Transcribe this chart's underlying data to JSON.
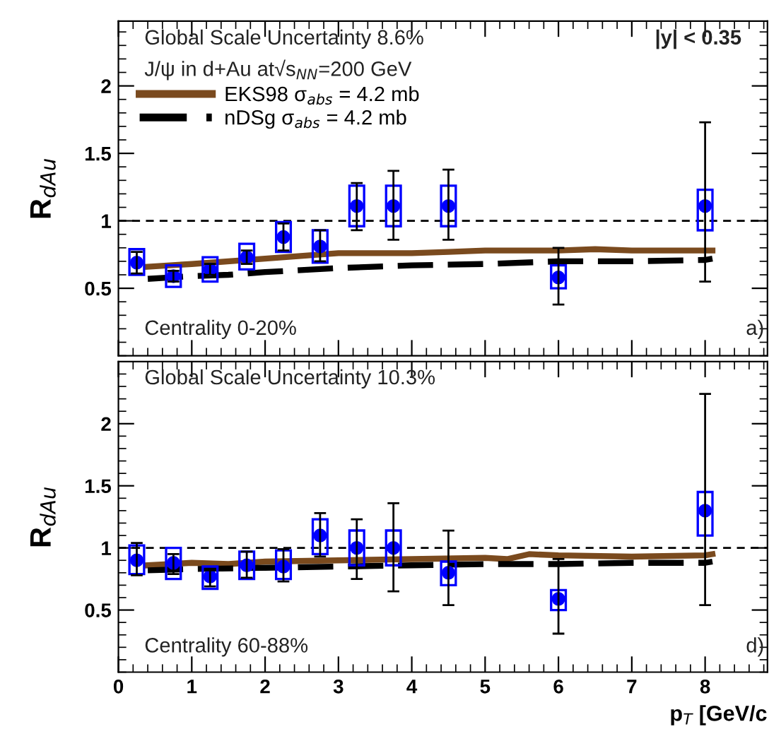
{
  "chart_data": [
    {
      "type": "scatter",
      "ylabel": "R$_{dAu}$",
      "xlim": [
        0,
        8.85
      ],
      "xticks": [
        0,
        1,
        2,
        3,
        4,
        5,
        6,
        7,
        8
      ],
      "ylim": [
        0,
        2.48
      ],
      "yticks": [
        0.5,
        1,
        1.5,
        2
      ],
      "tick_labels": "y",
      "legend": "top left",
      "grid": false,
      "annotations": [
        "Global Scale Uncertainty 8.6%",
        "J/ψ in d+Au at√s$_{NN}$=200 GeV",
        "|y| < 0.35",
        "Centrality 0-20%",
        "a)"
      ],
      "ref_lines": [
        {
          "axis": "y",
          "value": 1,
          "color": "#000000",
          "line_style": "dashed"
        }
      ],
      "series": [
        {
          "type": "bar",
          "color": "#0000ff",
          "x": [
            0.25,
            0.75,
            1.25,
            1.75,
            2.25,
            2.75,
            3.25,
            3.75,
            4.5,
            6,
            8
          ],
          "base": [
            0.6,
            0.51,
            0.55,
            0.64,
            0.77,
            0.69,
            0.96,
            0.96,
            0.96,
            0.5,
            0.93
          ],
          "values": [
            0.19,
            0.16,
            0.18,
            0.19,
            0.22,
            0.24,
            0.3,
            0.3,
            0.3,
            0.17,
            0.3
          ]
        },
        {
          "color": "#0000ff",
          "marker": "circle",
          "x": [
            0.25,
            0.75,
            1.25,
            1.75,
            2.25,
            2.75,
            3.25,
            3.75,
            4.5,
            6,
            8
          ],
          "values": [
            0.69,
            0.59,
            0.64,
            0.73,
            0.88,
            0.81,
            1.11,
            1.11,
            1.11,
            0.58,
            1.11
          ],
          "errors": [
            [
              0.61,
              0.77
            ],
            [
              0.55,
              0.63
            ],
            [
              0.6,
              0.68
            ],
            [
              0.68,
              0.78
            ],
            [
              0.78,
              0.98
            ],
            [
              0.7,
              0.93
            ],
            [
              0.93,
              1.28
            ],
            [
              0.86,
              1.37
            ],
            [
              0.86,
              1.38
            ],
            [
              0.38,
              0.8
            ],
            [
              0.55,
              1.73
            ]
          ]
        },
        {
          "type": "line",
          "name": "EKS98 σ$_{abs}$ = 4.2 mb",
          "color": "#7a4a1e",
          "line_style": "solid",
          "x": [
            0.4,
            1,
            2,
            3,
            4,
            4.5,
            5,
            6,
            6.5,
            7,
            8.1
          ],
          "values": [
            0.66,
            0.68,
            0.72,
            0.76,
            0.76,
            0.77,
            0.78,
            0.78,
            0.79,
            0.78,
            0.78
          ]
        },
        {
          "type": "line",
          "name": "nDSg σ$_{abs}$ = 4.2 mb",
          "color": "#000000",
          "line_style": "dashed",
          "x": [
            0.4,
            1,
            1.5,
            2,
            3,
            4,
            5,
            6,
            7,
            8,
            8.1
          ],
          "values": [
            0.57,
            0.59,
            0.6,
            0.62,
            0.65,
            0.67,
            0.68,
            0.7,
            0.7,
            0.71,
            0.72
          ]
        }
      ]
    },
    {
      "type": "scatter",
      "ylabel": "R$_{dAu}$",
      "xlabel": "p$_{T}$ [GeV/c",
      "xlim": [
        0,
        8.85
      ],
      "xticks": [
        0,
        1,
        2,
        3,
        4,
        5,
        6,
        7,
        8
      ],
      "ylim": [
        0,
        2.5
      ],
      "yticks": [
        0.5,
        1,
        1.5,
        2
      ],
      "grid": false,
      "annotations": [
        "Global Scale Uncertainty 10.3%",
        "Centrality 60-88%",
        "d)"
      ],
      "ref_lines": [
        {
          "axis": "y",
          "value": 1,
          "color": "#000000",
          "line_style": "dashed"
        }
      ],
      "series": [
        {
          "type": "bar",
          "color": "#0000ff",
          "x": [
            0.25,
            0.75,
            1.25,
            1.75,
            2.25,
            2.75,
            3.25,
            3.75,
            4.5,
            6,
            8
          ],
          "base": [
            0.79,
            0.75,
            0.67,
            0.75,
            0.75,
            0.95,
            0.86,
            0.86,
            0.7,
            0.5,
            1.1
          ],
          "values": [
            0.23,
            0.25,
            0.18,
            0.22,
            0.23,
            0.28,
            0.28,
            0.28,
            0.19,
            0.16,
            0.35
          ]
        },
        {
          "color": "#0000ff",
          "marker": "circle",
          "x": [
            0.25,
            0.75,
            1.25,
            1.75,
            2.25,
            2.75,
            3.25,
            3.75,
            4.5,
            6,
            8
          ],
          "values": [
            0.9,
            0.88,
            0.77,
            0.86,
            0.85,
            1.1,
            1.0,
            1.0,
            0.8,
            0.59,
            1.3
          ],
          "errors": [
            [
              0.78,
              1.04
            ],
            [
              0.79,
              0.95
            ],
            [
              0.69,
              0.82
            ],
            [
              0.76,
              0.97
            ],
            [
              0.73,
              0.99
            ],
            [
              0.93,
              1.28
            ],
            [
              0.75,
              1.23
            ],
            [
              0.65,
              1.36
            ],
            [
              0.54,
              1.14
            ],
            [
              0.31,
              0.91
            ],
            [
              0.54,
              2.24
            ]
          ]
        },
        {
          "type": "line",
          "color": "#7a4a1e",
          "line_style": "solid",
          "x": [
            0.4,
            1,
            1.5,
            2,
            3,
            4,
            5,
            5.3,
            5.6,
            6,
            7,
            8,
            8.1
          ],
          "values": [
            0.86,
            0.88,
            0.87,
            0.89,
            0.9,
            0.91,
            0.92,
            0.91,
            0.95,
            0.94,
            0.93,
            0.94,
            0.95
          ]
        },
        {
          "type": "line",
          "color": "#000000",
          "line_style": "dashed",
          "x": [
            0.4,
            1,
            2,
            3,
            4,
            5,
            6,
            7,
            8,
            8.1
          ],
          "values": [
            0.82,
            0.83,
            0.84,
            0.85,
            0.86,
            0.87,
            0.87,
            0.88,
            0.88,
            0.89
          ]
        }
      ]
    }
  ]
}
